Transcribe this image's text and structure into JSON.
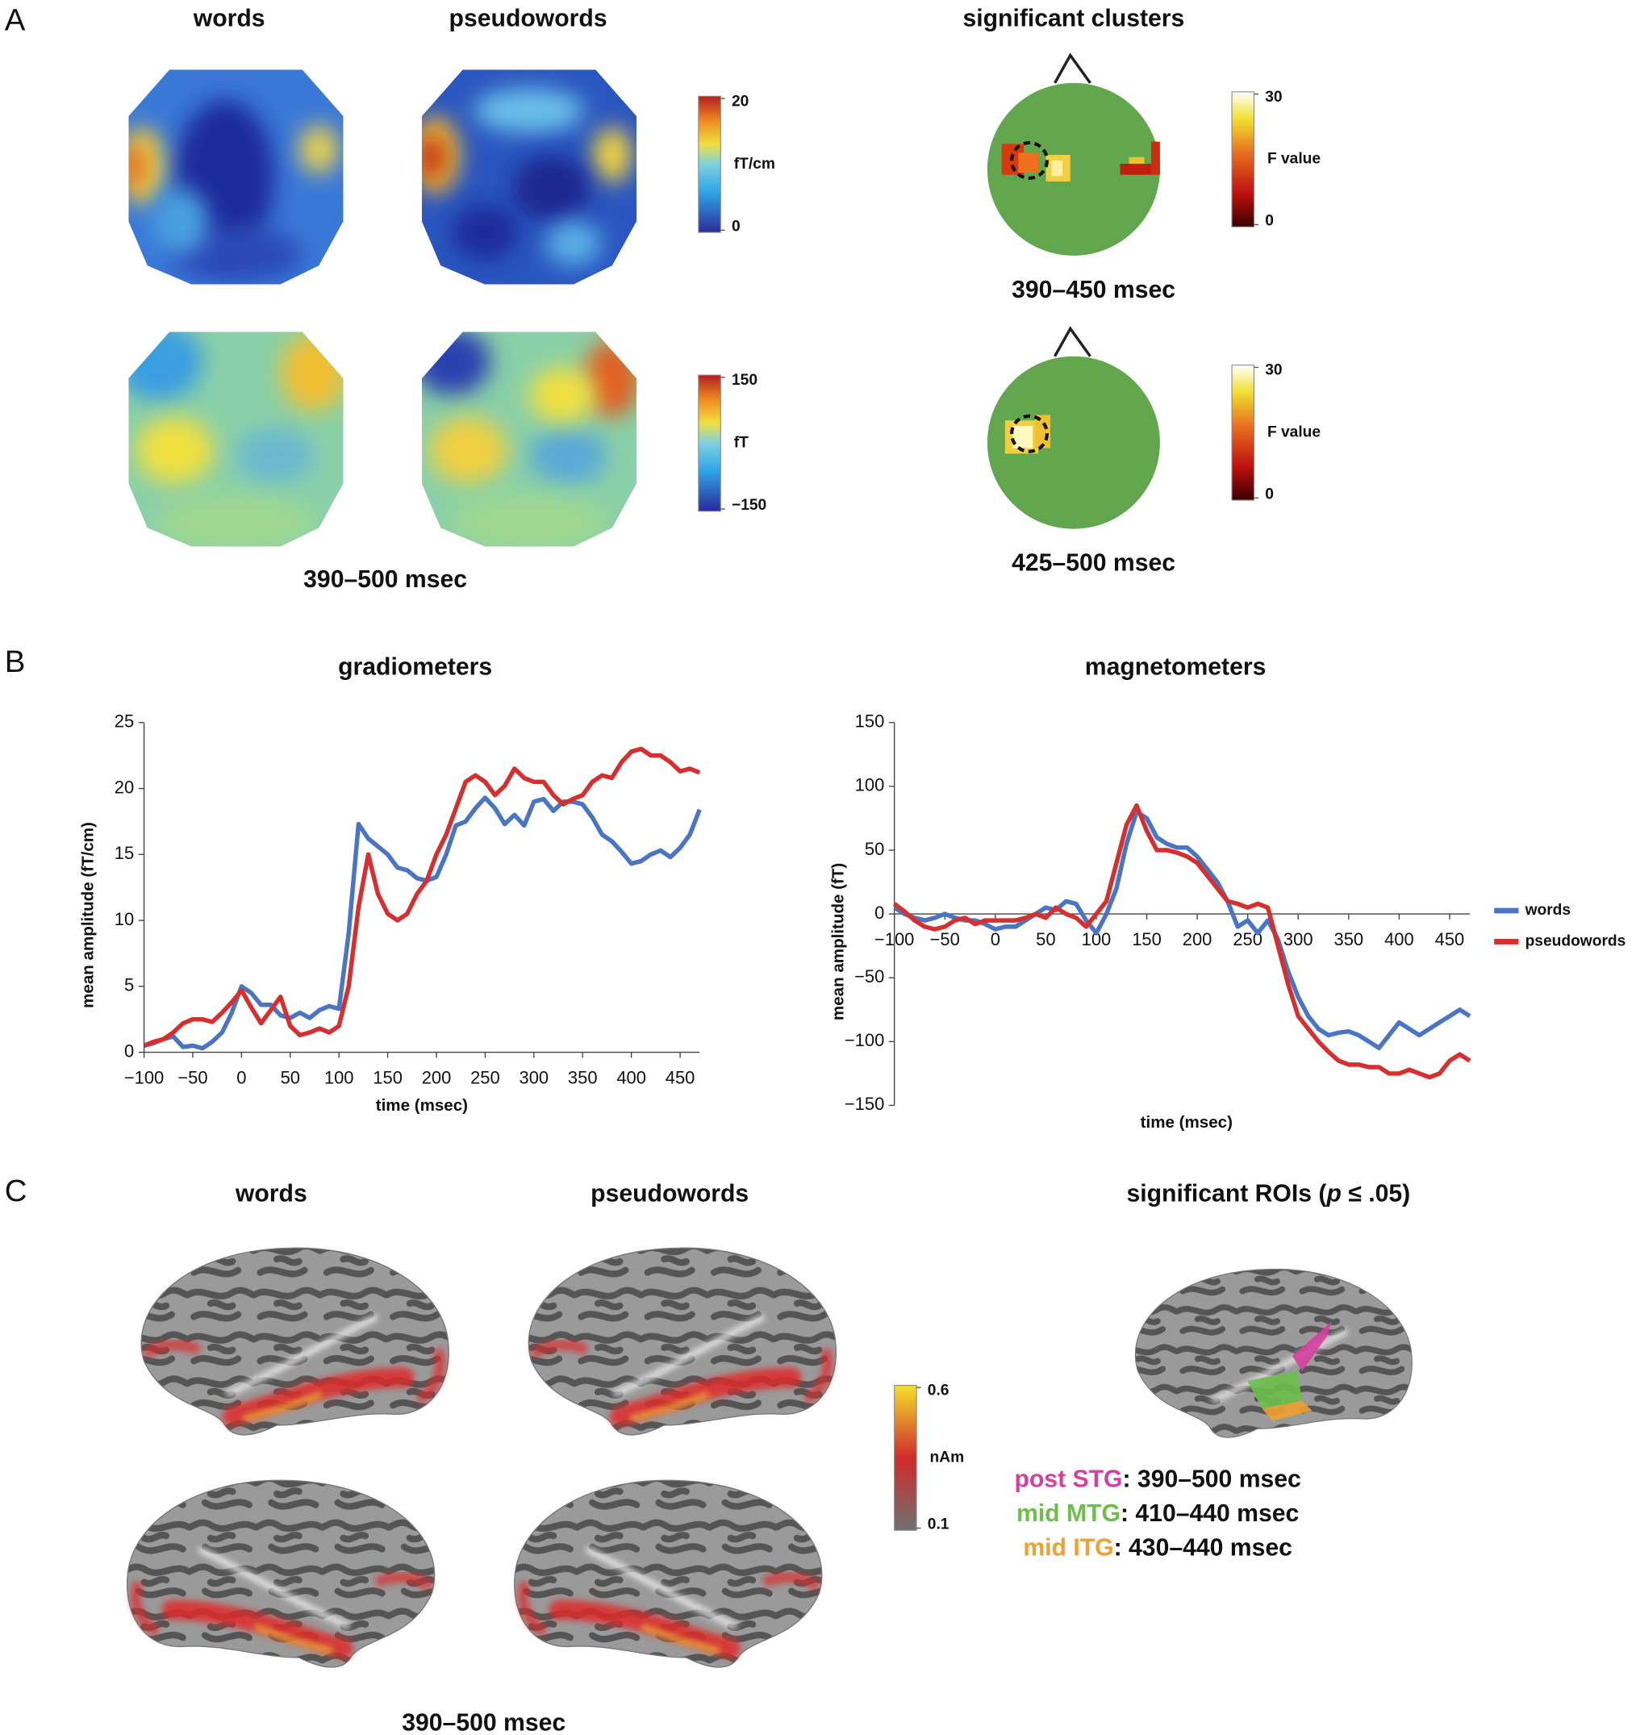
{
  "panel_labels": [
    "A",
    "B",
    "C"
  ],
  "panel_a": {
    "titles": [
      "words",
      "pseudowords",
      "significant clusters"
    ],
    "time_window": "390–500 msec",
    "colorbars": [
      {
        "max": 20,
        "unit": "fT/cm",
        "min": 0
      },
      {
        "max": 150,
        "unit": "fT",
        "min": {
          "value": -150,
          "label": "−150"
        }
      }
    ],
    "clusters": [
      {
        "time_window": "390–450 msec",
        "colorbar": {
          "max": 30,
          "unit": "F value",
          "min": 0
        }
      },
      {
        "time_window": "425–500 msec",
        "colorbar": {
          "max": 30,
          "unit": "F value",
          "min": 0
        }
      }
    ]
  },
  "chart_data": [
    {
      "type": "line",
      "title": "gradiometers",
      "x_label": "time (msec)",
      "y_label": "mean amplitude (fT/cm)",
      "x": [
        -100,
        -90,
        -80,
        -70,
        -60,
        -50,
        -40,
        -30,
        -20,
        -10,
        0,
        10,
        20,
        30,
        40,
        50,
        60,
        70,
        80,
        90,
        100,
        110,
        120,
        130,
        140,
        150,
        160,
        170,
        180,
        190,
        200,
        210,
        220,
        230,
        240,
        250,
        260,
        270,
        280,
        290,
        300,
        310,
        320,
        330,
        340,
        350,
        360,
        370,
        380,
        390,
        400,
        410,
        420,
        430,
        440,
        450,
        460,
        470
      ],
      "series": [
        {
          "name": "words",
          "color": "#4a74c4",
          "values": [
            0.5,
            0.7,
            1.0,
            1.2,
            0.4,
            0.5,
            0.3,
            0.8,
            1.5,
            3.0,
            5.0,
            4.5,
            3.6,
            3.6,
            2.8,
            2.6,
            3.0,
            2.6,
            3.2,
            3.5,
            3.3,
            9.0,
            17.3,
            16.2,
            15.6,
            15.0,
            14.0,
            13.8,
            13.2,
            13.0,
            13.3,
            15.0,
            17.2,
            17.5,
            18.5,
            19.3,
            18.5,
            17.3,
            18.0,
            17.2,
            19.0,
            19.2,
            18.3,
            19.0,
            19.0,
            18.8,
            17.8,
            16.5,
            16.0,
            15.2,
            14.3,
            14.5,
            15.0,
            15.3,
            14.8,
            15.5,
            16.5,
            18.4
          ]
        },
        {
          "name": "pseudowords",
          "color": "#d62f2f",
          "values": [
            0.5,
            0.8,
            1.0,
            1.5,
            2.2,
            2.5,
            2.5,
            2.3,
            3.0,
            3.8,
            4.7,
            3.4,
            2.2,
            3.2,
            4.2,
            2.0,
            1.3,
            1.5,
            1.8,
            1.5,
            2.0,
            5.0,
            11.0,
            15.0,
            12.0,
            10.5,
            10.0,
            10.5,
            12.0,
            13.0,
            15.0,
            16.5,
            18.5,
            20.5,
            21.0,
            20.5,
            19.5,
            20.2,
            21.5,
            20.8,
            20.5,
            20.5,
            19.5,
            18.8,
            19.2,
            19.5,
            20.5,
            21.0,
            20.8,
            22.0,
            22.8,
            23.0,
            22.5,
            22.5,
            22.0,
            21.3,
            21.5,
            21.2
          ]
        }
      ],
      "xlim": [
        -100,
        470
      ],
      "ylim": [
        0,
        25
      ],
      "xticks": [
        {
          "value": -100,
          "label": "−100"
        },
        {
          "value": -50,
          "label": "−50"
        },
        0,
        50,
        100,
        150,
        200,
        250,
        300,
        350,
        400,
        450
      ],
      "yticks": [
        0,
        5,
        10,
        15,
        20,
        25
      ],
      "x_axis_position": "bottom",
      "legend": false
    },
    {
      "type": "line",
      "title": "magnetometers",
      "x_label": "time (msec)",
      "y_label": "mean amplitude (fT)",
      "x": [
        -100,
        -90,
        -80,
        -70,
        -60,
        -50,
        -40,
        -30,
        -20,
        -10,
        0,
        10,
        20,
        30,
        40,
        50,
        60,
        70,
        80,
        90,
        100,
        110,
        120,
        130,
        140,
        150,
        160,
        170,
        180,
        190,
        200,
        210,
        220,
        230,
        240,
        250,
        260,
        270,
        280,
        290,
        300,
        310,
        320,
        330,
        340,
        350,
        360,
        370,
        380,
        390,
        400,
        410,
        420,
        430,
        440,
        450,
        460,
        470
      ],
      "series": [
        {
          "name": "words",
          "color": "#4a74c4",
          "values": [
            5,
            0,
            -3,
            -5,
            -3,
            0,
            -3,
            -5,
            -5,
            -8,
            -12,
            -10,
            -10,
            -5,
            0,
            5,
            3,
            10,
            8,
            -5,
            -15,
            0,
            20,
            55,
            80,
            75,
            60,
            55,
            52,
            52,
            45,
            35,
            25,
            10,
            -10,
            -5,
            -15,
            -5,
            -20,
            -45,
            -65,
            -80,
            -90,
            -95,
            -93,
            -92,
            -95,
            -100,
            -105,
            -95,
            -85,
            -90,
            -95,
            -90,
            -85,
            -80,
            -75,
            -80
          ]
        },
        {
          "name": "pseudowords",
          "color": "#d62f2f",
          "values": [
            8,
            2,
            -5,
            -10,
            -12,
            -10,
            -5,
            -3,
            -8,
            -5,
            -5,
            -5,
            -5,
            -3,
            0,
            -3,
            5,
            0,
            -3,
            -10,
            0,
            10,
            40,
            70,
            85,
            65,
            50,
            50,
            48,
            45,
            40,
            30,
            20,
            10,
            8,
            5,
            8,
            5,
            -25,
            -55,
            -80,
            -90,
            -100,
            -108,
            -115,
            -118,
            -118,
            -120,
            -120,
            -125,
            -125,
            -122,
            -125,
            -128,
            -125,
            -115,
            -110,
            -115
          ]
        }
      ],
      "xlim": [
        -100,
        470
      ],
      "ylim": [
        -150,
        150
      ],
      "xticks": [
        {
          "value": -100,
          "label": "−100"
        },
        {
          "value": -50,
          "label": "−50"
        },
        0,
        50,
        100,
        150,
        200,
        250,
        300,
        350,
        400,
        450
      ],
      "yticks": [
        {
          "value": -150,
          "label": "−150"
        },
        {
          "value": -100,
          "label": "−100"
        },
        {
          "value": -50,
          "label": "−50"
        },
        0,
        50,
        100,
        150
      ],
      "x_axis_position": "zero",
      "legend": "right"
    }
  ],
  "panel_c": {
    "titles": [
      "words",
      "pseudowords"
    ],
    "roi_title": [
      "significant ROIs (",
      "p",
      " ≤ .05)"
    ],
    "colorbar": {
      "max": 0.6,
      "unit": "nAm",
      "min": 0.1
    },
    "time_window": "390–500 msec",
    "rois": [
      {
        "name": "post STG",
        "text": ": 390–500 msec",
        "color": "#d63fa0"
      },
      {
        "name": "mid MTG",
        "text": ": 410–440 msec",
        "color": "#6cc04a"
      },
      {
        "name": "mid ITG",
        "text": ": 430–440 msec",
        "color": "#f0a030"
      }
    ]
  }
}
